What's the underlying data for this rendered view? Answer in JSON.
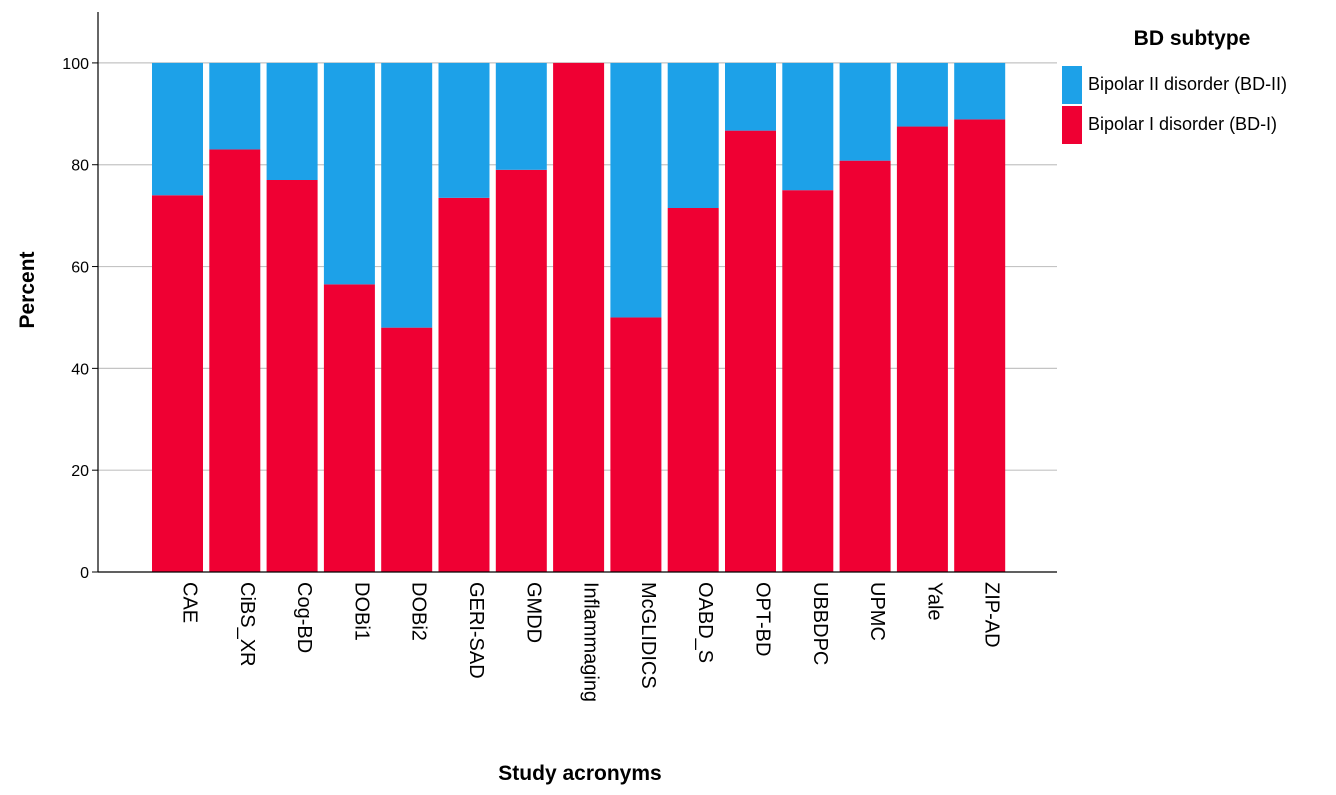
{
  "chart_data": {
    "type": "bar",
    "stacked": true,
    "categories": [
      "CAE",
      "CiBS_XR",
      "Cog-BD",
      "DOBi1",
      "DOBi2",
      "GERI-SAD",
      "GMDD",
      "Inflammaging",
      "McGLIDICS",
      "OABD_S",
      "OPT-BD",
      "UBBDPC",
      "UPMC",
      "Yale",
      "ZIP-AD"
    ],
    "series": [
      {
        "name": "Bipolar I disorder (BD-I)",
        "color": "#ef0033",
        "values": [
          74,
          83,
          77,
          56.5,
          48,
          73.5,
          79,
          100,
          50,
          71.5,
          86.7,
          75,
          80.8,
          87.5,
          88.9
        ]
      },
      {
        "name": "Bipolar II disorder (BD-II)",
        "color": "#1da1e8",
        "values": [
          26,
          17,
          23,
          43.5,
          52,
          26.5,
          21,
          0,
          50,
          28.5,
          13.3,
          25,
          19.2,
          12.5,
          11.1
        ]
      }
    ],
    "xlabel": "Study acronyms",
    "ylabel": "Percent",
    "ylim": [
      0,
      110
    ],
    "yticks": [
      0,
      20,
      40,
      60,
      80,
      100
    ],
    "grid": "horizontal",
    "legend": {
      "title": "BD subtype",
      "placement": "top-right",
      "entries": [
        "Bipolar II disorder (BD-II)",
        "Bipolar I disorder (BD-I)"
      ]
    }
  }
}
